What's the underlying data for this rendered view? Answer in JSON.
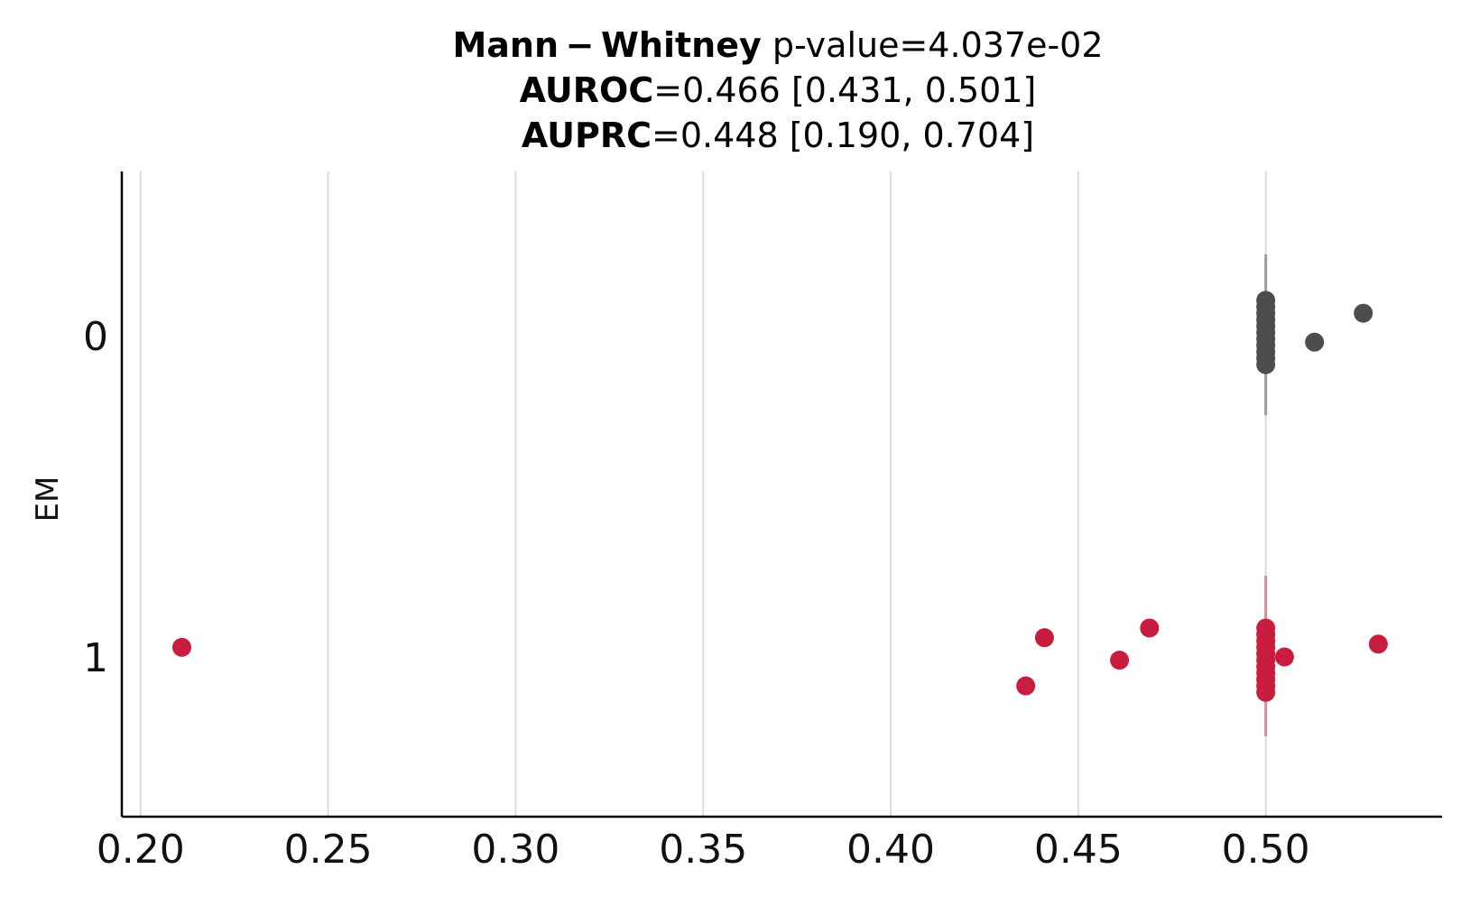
{
  "chart_data": {
    "type": "scatter",
    "title": {
      "line1_bold": "Mann − Whitney",
      "line1_rest": " p-value=4.037e-02",
      "line2_bold": "AUROC",
      "line2_rest": "=0.466 [0.431, 0.501]",
      "line3_bold": "AUPRC",
      "line3_rest": "=0.448 [0.190, 0.704]"
    },
    "xlabel": "",
    "ylabel": "EM",
    "xlim": [
      0.195,
      0.547
    ],
    "x_ticks": [
      "0.20",
      "0.25",
      "0.30",
      "0.35",
      "0.40",
      "0.45",
      "0.50"
    ],
    "y_categories": [
      "0",
      "1"
    ],
    "grid": "vertical",
    "series": [
      {
        "category": "0",
        "color": "#4d4d4f",
        "whisker_color": "#9a9a9a",
        "whisker_range": [
          0.5,
          0.5
        ],
        "points": [
          {
            "x": 0.5,
            "y": -0.09
          },
          {
            "x": 0.5,
            "y": -0.07
          },
          {
            "x": 0.5,
            "y": -0.05
          },
          {
            "x": 0.5,
            "y": -0.03
          },
          {
            "x": 0.5,
            "y": -0.01
          },
          {
            "x": 0.5,
            "y": 0.01
          },
          {
            "x": 0.5,
            "y": 0.03
          },
          {
            "x": 0.5,
            "y": 0.05
          },
          {
            "x": 0.5,
            "y": 0.07
          },
          {
            "x": 0.5,
            "y": 0.09
          },
          {
            "x": 0.5,
            "y": 0.11
          },
          {
            "x": 0.513,
            "y": -0.02
          },
          {
            "x": 0.526,
            "y": 0.07
          }
        ]
      },
      {
        "category": "1",
        "color": "#c81d3e",
        "whisker_color": "#d98a99",
        "whisker_range": [
          0.5,
          0.5
        ],
        "points": [
          {
            "x": 0.211,
            "y": 0.03
          },
          {
            "x": 0.441,
            "y": 0.06
          },
          {
            "x": 0.436,
            "y": -0.09
          },
          {
            "x": 0.461,
            "y": -0.01
          },
          {
            "x": 0.469,
            "y": 0.09
          },
          {
            "x": 0.505,
            "y": 0.0
          },
          {
            "x": 0.53,
            "y": 0.04
          },
          {
            "x": 0.5,
            "y": -0.11
          },
          {
            "x": 0.5,
            "y": -0.09
          },
          {
            "x": 0.5,
            "y": -0.07
          },
          {
            "x": 0.5,
            "y": -0.05
          },
          {
            "x": 0.5,
            "y": -0.03
          },
          {
            "x": 0.5,
            "y": -0.01
          },
          {
            "x": 0.5,
            "y": 0.01
          },
          {
            "x": 0.5,
            "y": 0.03
          },
          {
            "x": 0.5,
            "y": 0.05
          },
          {
            "x": 0.5,
            "y": 0.07
          },
          {
            "x": 0.5,
            "y": 0.09
          }
        ]
      }
    ]
  }
}
